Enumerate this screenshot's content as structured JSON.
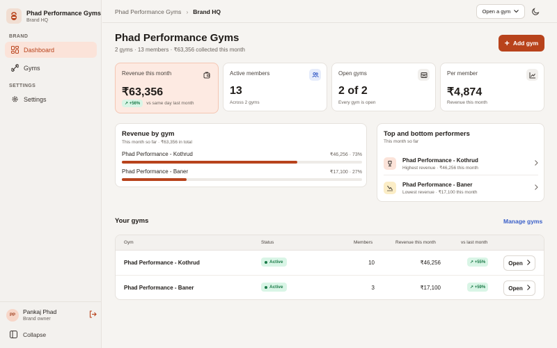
{
  "colors": {
    "accent": "#b8431c",
    "accent_soft": "#fbe3d9",
    "success": "#1b7a48",
    "success_soft": "#d9f5e6",
    "link": "#3a5fc8"
  },
  "sidebar": {
    "brand_name": "Phad Performance Gyms",
    "brand_sub": "Brand HQ",
    "section_brand": "BRAND",
    "section_settings": "SETTINGS",
    "items": [
      {
        "label": "Dashboard",
        "icon": "dashboard-icon",
        "active": true
      },
      {
        "label": "Gyms",
        "icon": "gyms-icon",
        "active": false
      },
      {
        "label": "Settings",
        "icon": "gear-icon",
        "active": false
      }
    ],
    "user": {
      "initials": "PP",
      "name": "Pankaj Phad",
      "role": "Brand owner"
    },
    "collapse_label": "Collapse"
  },
  "topbar": {
    "breadcrumb": [
      "Phad Performance Gyms",
      "Brand HQ"
    ],
    "gym_select": "Open a gym"
  },
  "header": {
    "title": "Phad Performance Gyms",
    "subtitle": "2 gyms · 13 members · ₹63,356 collected this month",
    "add_button": "Add gym"
  },
  "stats": [
    {
      "title": "Revenue this month",
      "value": "₹63,356",
      "badge": "↗ +56%",
      "note": "vs same day last month",
      "icon": "wallet-icon"
    },
    {
      "title": "Active members",
      "value": "13",
      "note": "Across 2 gyms",
      "icon": "users-icon"
    },
    {
      "title": "Open gyms",
      "value": "2 of 2",
      "note": "Every gym is open",
      "icon": "store-icon"
    },
    {
      "title": "Per member",
      "value": "₹4,874",
      "note": "Revenue this month",
      "icon": "chart-icon"
    }
  ],
  "revenue_by_gym": {
    "title": "Revenue by gym",
    "subtitle": "This month so far · ₹63,356 in total",
    "rows": [
      {
        "name": "Phad Performance - Kothrud",
        "value": "₹46,256 · 73%",
        "share": 73
      },
      {
        "name": "Phad Performance - Baner",
        "value": "₹17,100 · 27%",
        "share": 27
      }
    ]
  },
  "performers": {
    "title": "Top and bottom performers",
    "subtitle": "This month so far",
    "rows": [
      {
        "name": "Phad Performance - Kothrud",
        "sub": "Highest revenue · ₹46,256 this month",
        "icon": "trophy-icon"
      },
      {
        "name": "Phad Performance - Baner",
        "sub": "Lowest revenue · ₹17,100 this month",
        "icon": "trend-down-icon"
      }
    ]
  },
  "gyms_table": {
    "title": "Your gyms",
    "manage_link": "Manage gyms",
    "headers": [
      "Gym",
      "Status",
      "Members",
      "Revenue this month",
      "vs last month"
    ],
    "rows": [
      {
        "gym": "Phad Performance - Kothrud",
        "status": "Active",
        "members": "10",
        "revenue": "₹46,256",
        "change": "↗ +55%",
        "open": "Open"
      },
      {
        "gym": "Phad Performance - Baner",
        "status": "Active",
        "members": "3",
        "revenue": "₹17,100",
        "change": "↗ +59%",
        "open": "Open"
      }
    ]
  }
}
